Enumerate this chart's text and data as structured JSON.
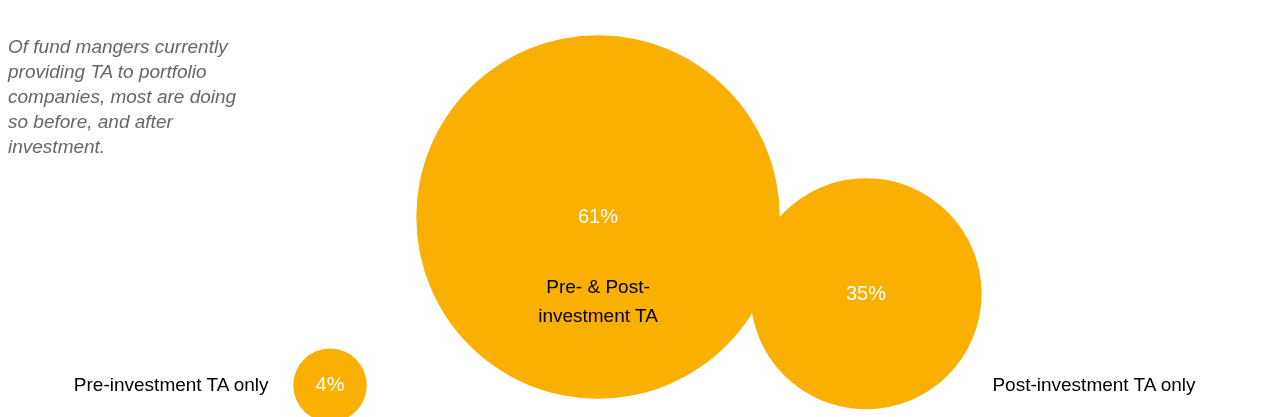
{
  "chart_data": {
    "type": "other",
    "annotations": [
      "Of fund mangers currently providing TA to portfolio companies, most are doing so before, and after investment."
    ],
    "categories": [
      "Pre-investment TA only",
      "Pre- & Post-investment TA",
      "Post-investment TA only"
    ],
    "values": [
      4,
      61,
      35
    ],
    "value_labels": [
      "4%",
      "61%",
      "35%"
    ],
    "color": "#f9b000"
  }
}
